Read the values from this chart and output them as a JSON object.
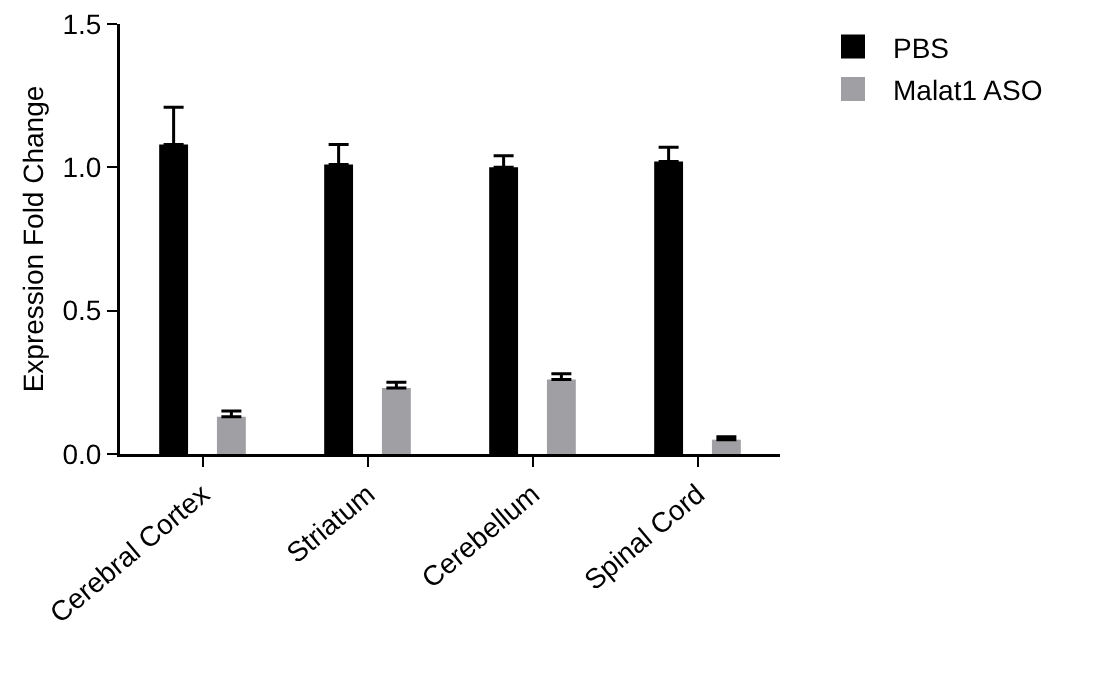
{
  "chart_data": {
    "type": "bar",
    "ylabel": "Expression Fold Change",
    "categories": [
      "Cerebral Cortex",
      "Striatum",
      "Cerebellum",
      "Spinal Cord"
    ],
    "series": [
      {
        "name": "PBS",
        "color": "#000000",
        "values": [
          1.08,
          1.01,
          1.0,
          1.02
        ],
        "errors": [
          [
            1.08,
            1.21
          ],
          [
            1.01,
            1.08
          ],
          [
            1.0,
            1.04
          ],
          [
            1.02,
            1.07
          ]
        ]
      },
      {
        "name": "Malat1 ASO",
        "color": "#a0a0a4",
        "values": [
          0.13,
          0.23,
          0.26,
          0.05
        ],
        "errors": [
          [
            0.13,
            0.15
          ],
          [
            0.23,
            0.25
          ],
          [
            0.26,
            0.28
          ],
          [
            0.05,
            0.06
          ]
        ]
      }
    ],
    "ylim": [
      0,
      1.5
    ],
    "yticks": [
      {
        "value": 0,
        "label": "0.0"
      },
      {
        "value": 0.5,
        "label": "0.5"
      },
      {
        "value": 1,
        "label": "1.0"
      },
      {
        "value": 1.5,
        "label": "1.5"
      }
    ],
    "grid": false,
    "legend": "top right"
  }
}
